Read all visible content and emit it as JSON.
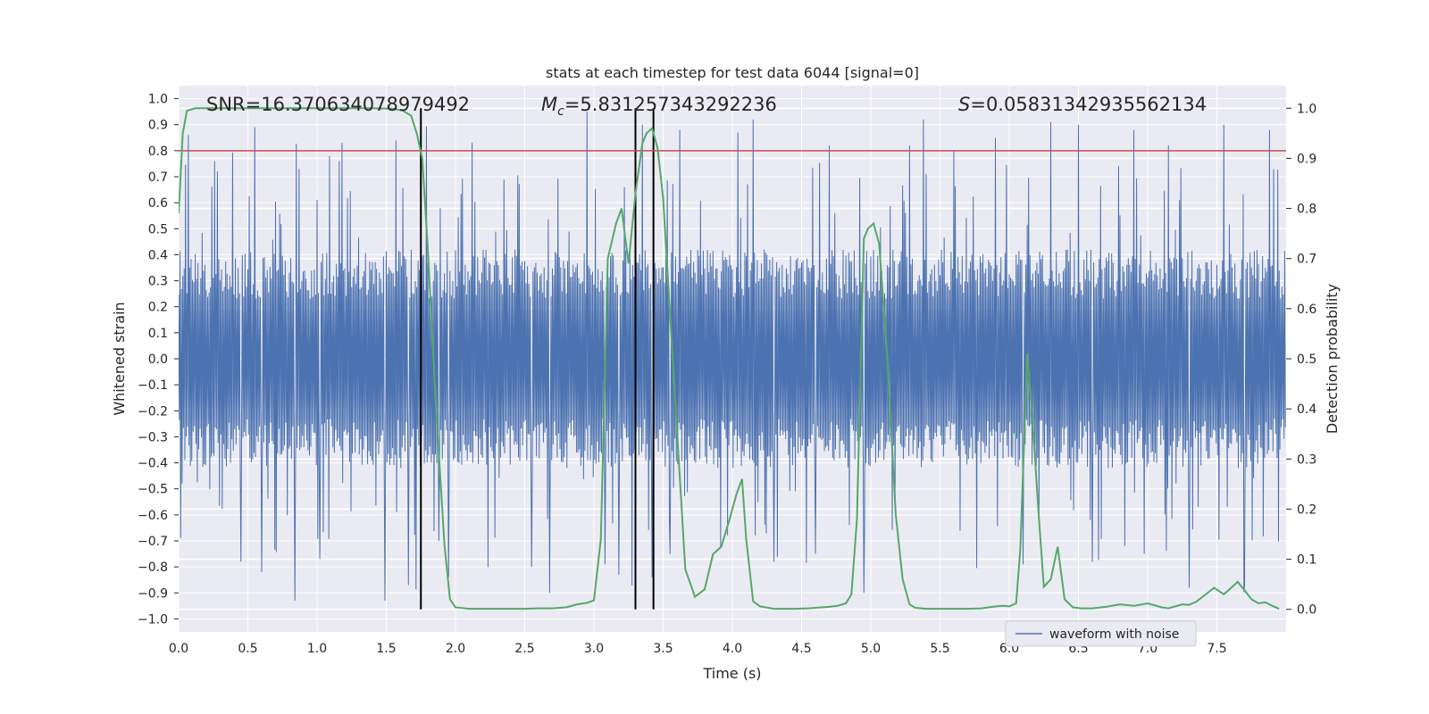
{
  "chart_data": {
    "type": "line",
    "title": "stats at each timestep for test data 6044 [signal=0]",
    "xlabel": "Time (s)",
    "ylabel": "Whitened strain",
    "y2label": "Detection probability",
    "xlim": [
      0,
      8
    ],
    "ylim": [
      -1.05,
      1.05
    ],
    "y2lim": [
      -0.045,
      1.045
    ],
    "xticks": [
      0.0,
      0.5,
      1.0,
      1.5,
      2.0,
      2.5,
      3.0,
      3.5,
      4.0,
      4.5,
      5.0,
      5.5,
      6.0,
      6.5,
      7.0,
      7.5
    ],
    "xtick_labels": [
      "0.0",
      "0.5",
      "1.0",
      "1.5",
      "2.0",
      "2.5",
      "3.0",
      "3.5",
      "4.0",
      "4.5",
      "5.0",
      "5.5",
      "6.0",
      "6.5",
      "7.0",
      "7.5"
    ],
    "yticks": [
      1.0,
      0.9,
      0.8,
      0.7,
      0.6,
      0.5,
      0.4,
      0.3,
      0.2,
      0.1,
      0.0,
      -0.1,
      -0.2,
      -0.3,
      -0.4,
      -0.5,
      -0.6,
      -0.7,
      -0.8,
      -0.9,
      -1.0
    ],
    "ytick_labels": [
      "1.0",
      "0.9",
      "0.8",
      "0.7",
      "0.6",
      "0.5",
      "0.4",
      "0.3",
      "0.2",
      "0.1",
      "0.0",
      "−0.1",
      "−0.2",
      "−0.3",
      "−0.4",
      "−0.5",
      "−0.6",
      "−0.7",
      "−0.8",
      "−0.9",
      "−1.0"
    ],
    "y2ticks": [
      1.0,
      0.9,
      0.8,
      0.7,
      0.6,
      0.5,
      0.4,
      0.3,
      0.2,
      0.1,
      0.0
    ],
    "y2tick_labels": [
      "1.0",
      "0.9",
      "0.8",
      "0.7",
      "0.6",
      "0.5",
      "0.4",
      "0.3",
      "0.2",
      "0.1",
      "0.0"
    ],
    "threshold": 0.8,
    "vlines": [
      1.75,
      3.3,
      3.43
    ],
    "annotations": {
      "snr": "SNR=16.370634078979492",
      "mc_symbol": "M",
      "mc_sub": "c",
      "mc_value": "=5.831257343292236",
      "s_symbol": "S",
      "s_value": "=0.05831342935562134"
    },
    "series": [
      {
        "name": "waveform with noise",
        "axis": "left",
        "color": "#4c72b0",
        "kind": "noise",
        "n_points": 1600,
        "envelope_abs": 0.42,
        "peaks": [
          [
            0.07,
            0.86
          ],
          [
            0.28,
            0.72
          ],
          [
            0.45,
            -0.78
          ],
          [
            0.6,
            -0.82
          ],
          [
            0.84,
            -0.93
          ],
          [
            1.02,
            -0.77
          ],
          [
            1.16,
            0.76
          ],
          [
            1.49,
            -0.93
          ],
          [
            1.57,
            0.84
          ],
          [
            1.66,
            -0.87
          ],
          [
            1.88,
            -0.7
          ],
          [
            1.95,
            -0.84
          ],
          [
            2.55,
            -0.8
          ],
          [
            2.68,
            -0.9
          ],
          [
            2.95,
            0.95
          ],
          [
            3.08,
            -0.79
          ],
          [
            3.18,
            -0.83
          ],
          [
            3.35,
            0.9
          ],
          [
            3.42,
            -0.84
          ],
          [
            3.55,
            -0.75
          ],
          [
            3.62,
            0.88
          ],
          [
            4.15,
            0.92
          ],
          [
            4.3,
            -0.78
          ],
          [
            4.6,
            -0.75
          ],
          [
            4.7,
            0.82
          ],
          [
            4.95,
            -0.9
          ],
          [
            5.28,
            0.82
          ],
          [
            5.38,
            0.92
          ],
          [
            5.6,
            0.8
          ],
          [
            5.9,
            0.85
          ],
          [
            6.1,
            -0.79
          ],
          [
            6.3,
            0.91
          ],
          [
            6.5,
            0.9
          ],
          [
            6.6,
            -0.78
          ],
          [
            6.9,
            0.88
          ],
          [
            7.15,
            0.82
          ],
          [
            7.3,
            -0.88
          ],
          [
            7.55,
            0.9
          ],
          [
            7.7,
            -0.87
          ],
          [
            7.88,
            0.88
          ]
        ]
      },
      {
        "name": "detection probability",
        "axis": "right",
        "color": "#55a868",
        "x": [
          0.0,
          0.03,
          0.06,
          0.12,
          0.2,
          0.4,
          0.6,
          0.8,
          1.0,
          1.2,
          1.4,
          1.55,
          1.62,
          1.68,
          1.72,
          1.76,
          1.8,
          1.86,
          1.92,
          1.96,
          2.0,
          2.1,
          2.3,
          2.5,
          2.6,
          2.7,
          2.8,
          2.88,
          2.95,
          3.0,
          3.05,
          3.1,
          3.16,
          3.2,
          3.25,
          3.3,
          3.35,
          3.38,
          3.42,
          3.46,
          3.5,
          3.58,
          3.66,
          3.73,
          3.8,
          3.86,
          3.92,
          3.98,
          4.03,
          4.07,
          4.1,
          4.15,
          4.2,
          4.3,
          4.45,
          4.55,
          4.7,
          4.76,
          4.82,
          4.86,
          4.9,
          4.95,
          4.98,
          5.02,
          5.06,
          5.12,
          5.18,
          5.23,
          5.28,
          5.32,
          5.4,
          5.5,
          5.7,
          5.8,
          5.88,
          5.95,
          6.0,
          6.05,
          6.08,
          6.13,
          6.17,
          6.21,
          6.25,
          6.3,
          6.35,
          6.4,
          6.46,
          6.52,
          6.6,
          6.7,
          6.8,
          6.9,
          7.0,
          7.1,
          7.15,
          7.2,
          7.25,
          7.3,
          7.35,
          7.42,
          7.48,
          7.55,
          7.6,
          7.65,
          7.7,
          7.75,
          7.8,
          7.85,
          7.9,
          7.95
        ],
        "y": [
          0.79,
          0.95,
          0.995,
          1.0,
          1.0,
          1.0,
          1.0,
          1.0,
          1.0,
          1.0,
          1.0,
          0.999,
          0.995,
          0.985,
          0.95,
          0.9,
          0.72,
          0.4,
          0.13,
          0.02,
          0.004,
          0.001,
          0.001,
          0.001,
          0.002,
          0.002,
          0.004,
          0.01,
          0.013,
          0.018,
          0.14,
          0.7,
          0.77,
          0.8,
          0.69,
          0.83,
          0.93,
          0.95,
          0.96,
          0.92,
          0.82,
          0.45,
          0.08,
          0.025,
          0.04,
          0.11,
          0.125,
          0.18,
          0.23,
          0.26,
          0.14,
          0.016,
          0.006,
          0.001,
          0.001,
          0.002,
          0.005,
          0.007,
          0.012,
          0.03,
          0.18,
          0.74,
          0.76,
          0.77,
          0.73,
          0.5,
          0.19,
          0.06,
          0.01,
          0.003,
          0.001,
          0.001,
          0.001,
          0.002,
          0.005,
          0.007,
          0.006,
          0.012,
          0.12,
          0.51,
          0.37,
          0.2,
          0.045,
          0.06,
          0.125,
          0.02,
          0.004,
          0.002,
          0.002,
          0.005,
          0.01,
          0.007,
          0.012,
          0.004,
          0.002,
          0.006,
          0.01,
          0.009,
          0.015,
          0.03,
          0.043,
          0.03,
          0.042,
          0.055,
          0.038,
          0.02,
          0.012,
          0.014,
          0.007,
          0.001
        ]
      },
      {
        "name": "threshold",
        "axis": "left",
        "color": "#c44e52",
        "value": 0.8
      }
    ],
    "legend": {
      "location": "lower-right",
      "entries": [
        "waveform with noise"
      ]
    },
    "grid": true
  },
  "colors": {
    "plot_background": "#eaeaf2",
    "grid": "#ffffff",
    "waveform": "#4c72b0",
    "probability": "#55a868",
    "threshold": "#c44e52",
    "vline": "#000000"
  }
}
